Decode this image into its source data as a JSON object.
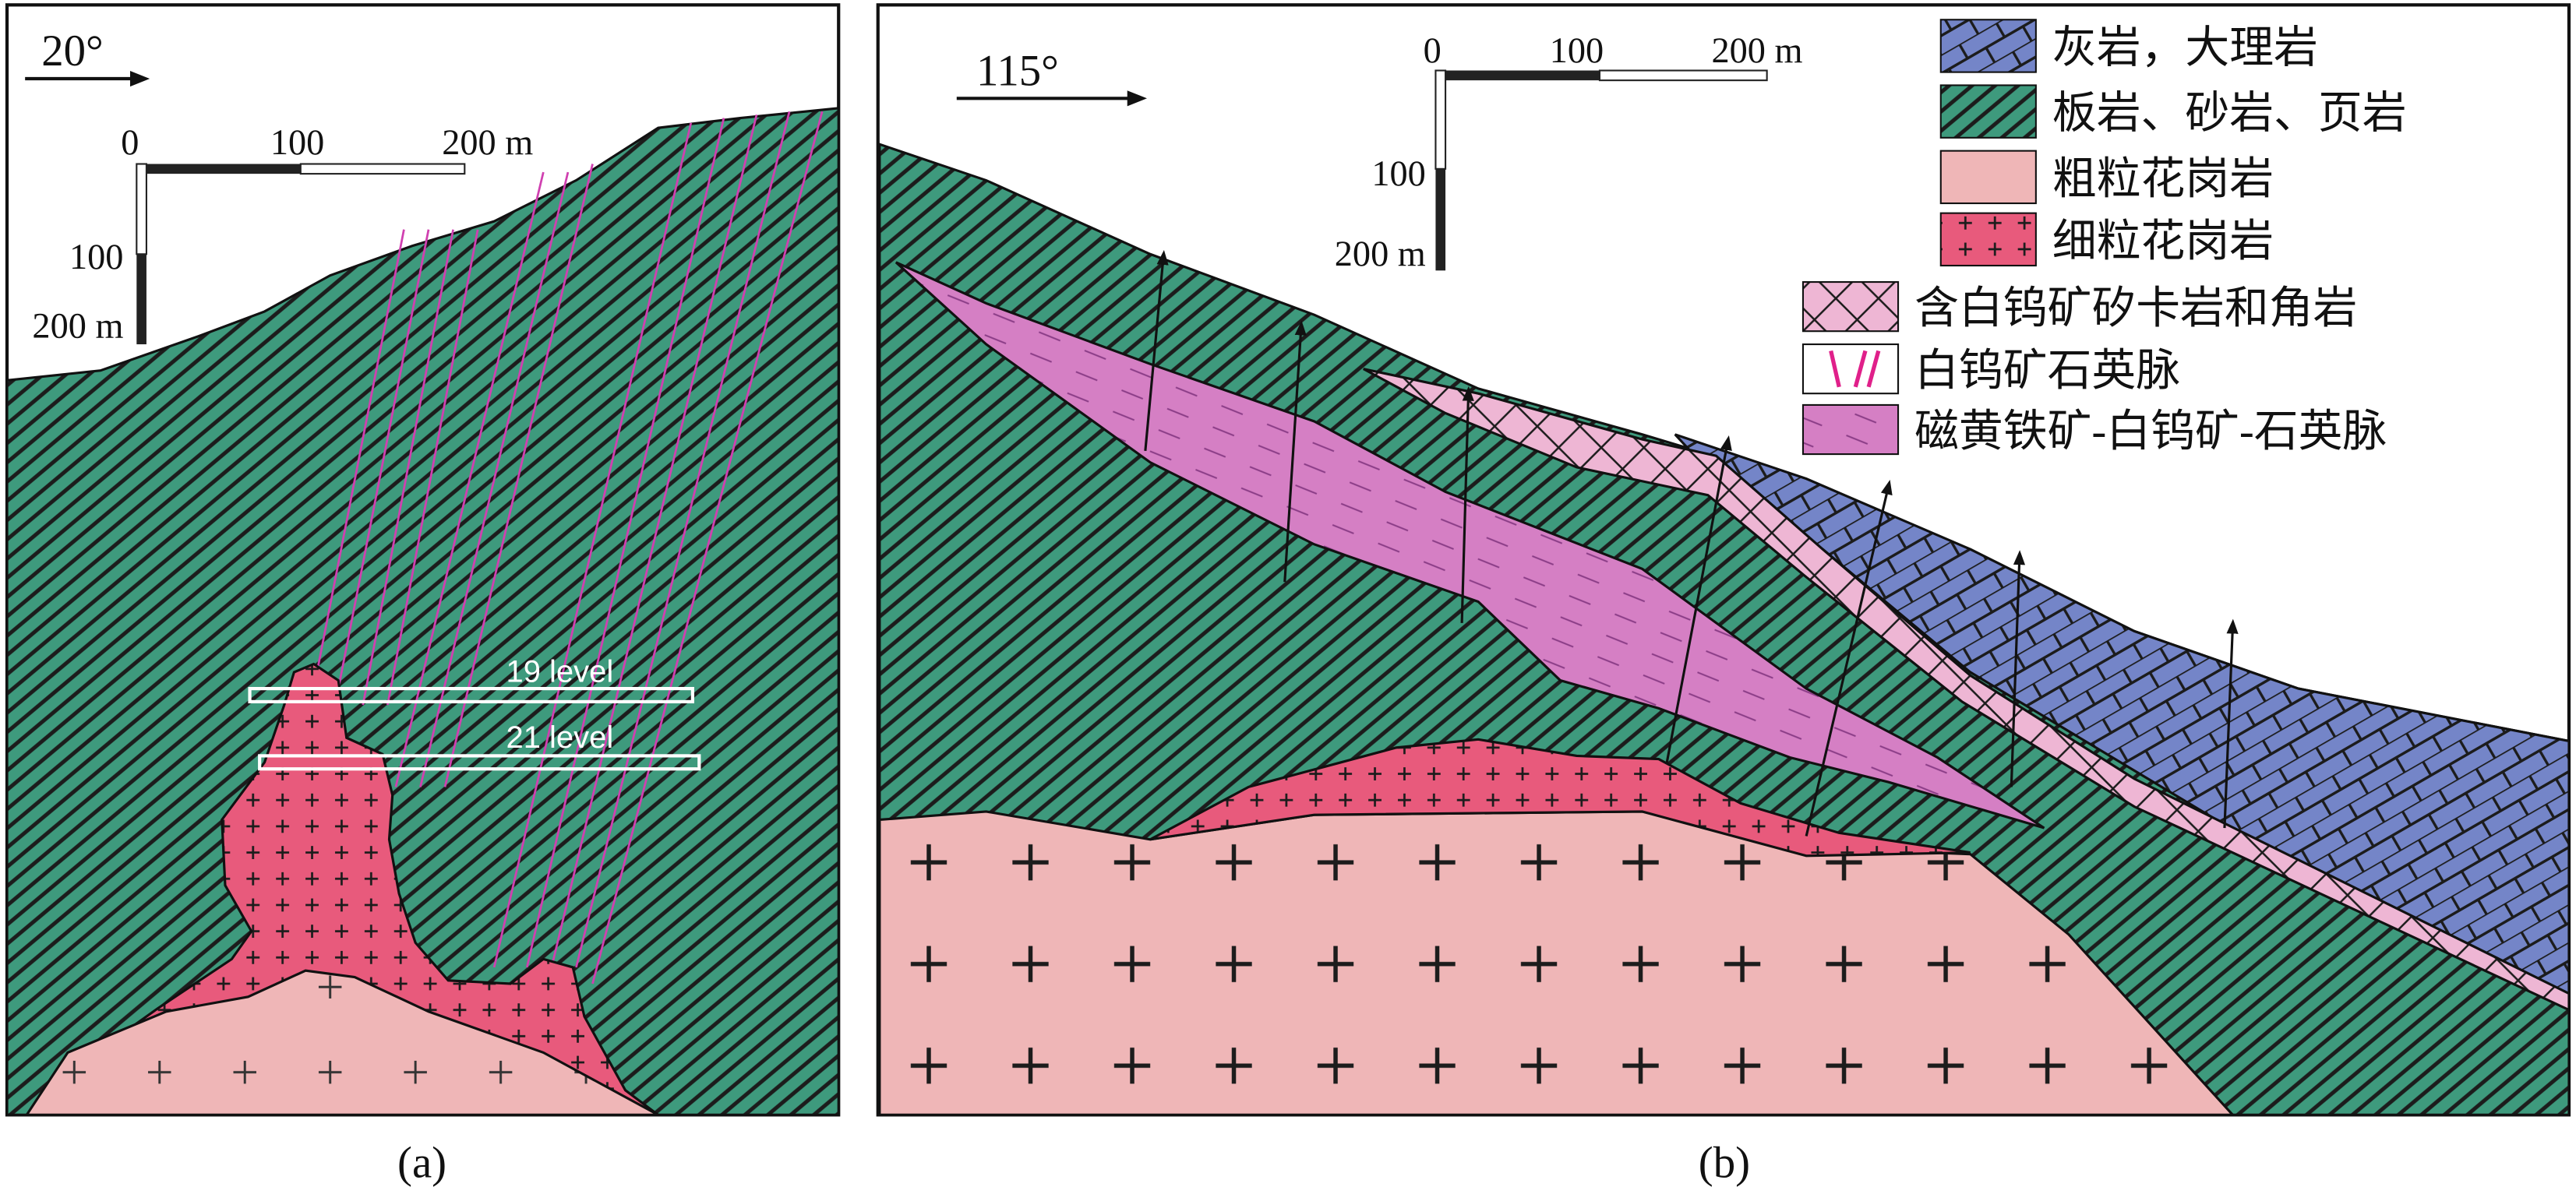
{
  "panel_a": {
    "direction": "20°",
    "scale_h": [
      "0",
      "100",
      "200 m"
    ],
    "scale_v": [
      "100",
      "200 m"
    ],
    "levels": [
      "19 level",
      "21 level"
    ],
    "caption": "(a)"
  },
  "panel_b": {
    "direction": "115°",
    "scale_h": [
      "0",
      "100",
      "200 m"
    ],
    "scale_v": [
      "100",
      "200 m"
    ],
    "caption": "(b)"
  },
  "legend": [
    "灰岩，大理岩",
    "板岩、砂岩、页岩",
    "粗粒花岗岩",
    "细粒花岗岩",
    "含白钨矿矽卡岩和角岩",
    "白钨矿石英脉",
    "磁黄铁矿-白钨矿-石英脉"
  ]
}
